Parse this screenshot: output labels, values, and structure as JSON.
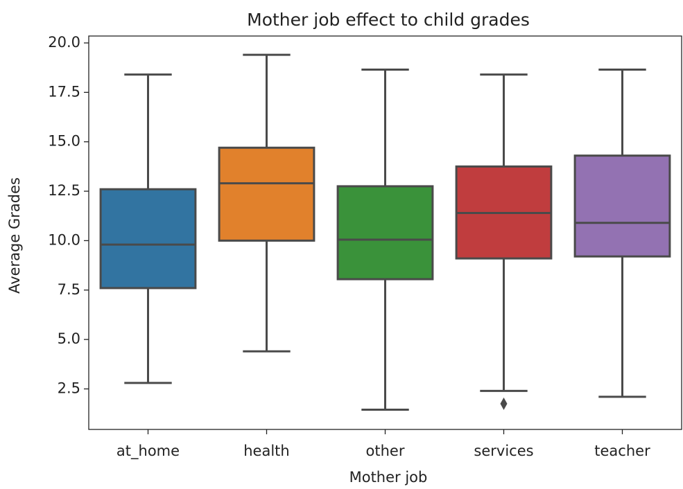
{
  "chart_data": {
    "type": "box",
    "title": "Mother job effect to child grades",
    "xlabel": "Mother job",
    "ylabel": "Average Grades",
    "categories": [
      "at_home",
      "health",
      "other",
      "services",
      "teacher"
    ],
    "colors": [
      "#3274a1",
      "#e1812c",
      "#3a923a",
      "#c03d3e",
      "#9372b2"
    ],
    "boxes": [
      {
        "whisker_low": 2.8,
        "q1": 7.6,
        "median": 9.8,
        "q3": 12.6,
        "whisker_high": 18.4,
        "outliers": []
      },
      {
        "whisker_low": 4.4,
        "q1": 10.0,
        "median": 12.9,
        "q3": 14.7,
        "whisker_high": 19.4,
        "outliers": []
      },
      {
        "whisker_low": 1.45,
        "q1": 8.05,
        "median": 10.05,
        "q3": 12.75,
        "whisker_high": 18.65,
        "outliers": []
      },
      {
        "whisker_low": 2.4,
        "q1": 9.1,
        "median": 11.4,
        "q3": 13.75,
        "whisker_high": 18.4,
        "outliers": [
          1.75
        ]
      },
      {
        "whisker_low": 2.1,
        "q1": 9.2,
        "median": 10.9,
        "q3": 14.3,
        "whisker_high": 18.65,
        "outliers": []
      }
    ],
    "ylim": [
      0.45,
      20.35
    ],
    "yticks": [
      2.5,
      {
        "value": 5,
        "label": "5.0"
      },
      7.5,
      {
        "value": 10,
        "label": "10.0"
      },
      12.5,
      {
        "value": 15,
        "label": "15.0"
      },
      17.5,
      {
        "value": 20,
        "label": "20.0"
      }
    ],
    "grid": false
  }
}
